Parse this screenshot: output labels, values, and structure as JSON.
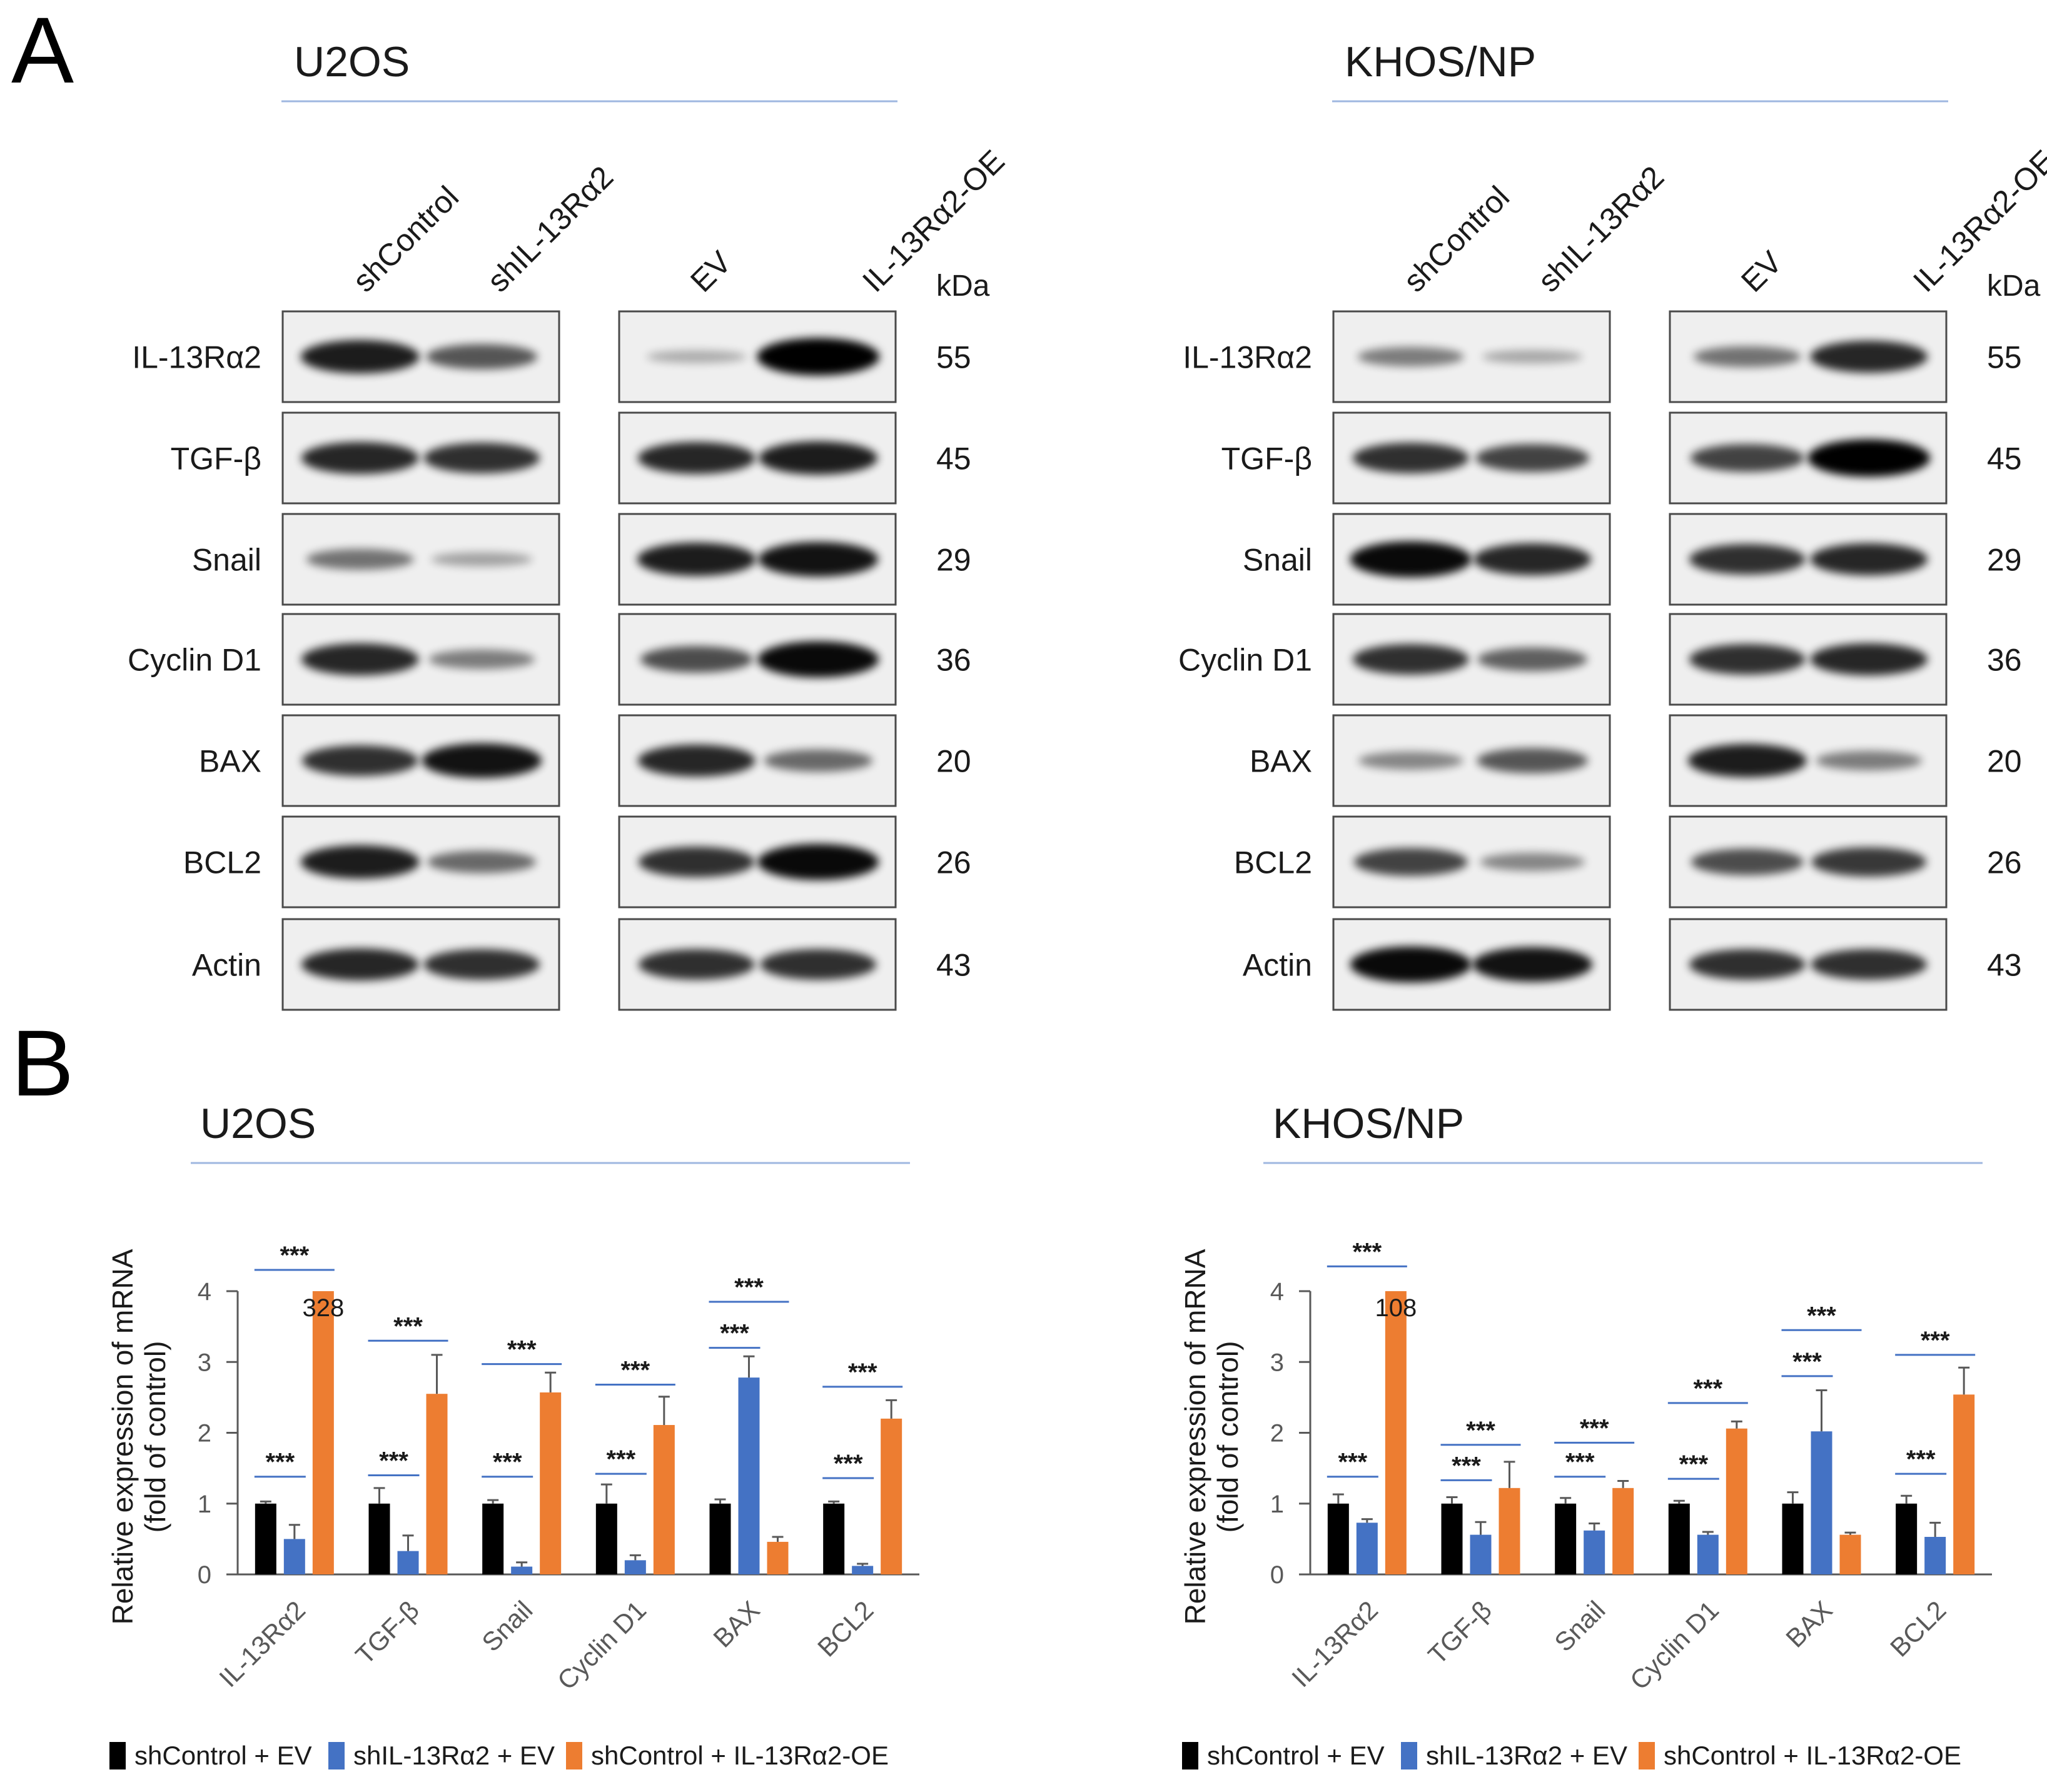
{
  "panels": {
    "a": "A",
    "b": "B"
  },
  "blots": {
    "lanes": [
      "shControl",
      "shIL-13Rα2",
      "EV",
      "IL-13Rα2-OE"
    ],
    "kda_label": "kDa",
    "proteins": [
      {
        "name": "IL-13Rα2",
        "kda": "55"
      },
      {
        "name": "TGF-β",
        "kda": "45"
      },
      {
        "name": "Snail",
        "kda": "29"
      },
      {
        "name": "Cyclin D1",
        "kda": "36"
      },
      {
        "name": "BAX",
        "kda": "20"
      },
      {
        "name": "BCL2",
        "kda": "26"
      },
      {
        "name": "Actin",
        "kda": "43"
      }
    ],
    "cells": [
      {
        "title": "U2OS",
        "bands": [
          [
            0.85,
            0.55,
            0.1,
            1.0
          ],
          [
            0.8,
            0.75,
            0.8,
            0.85
          ],
          [
            0.4,
            0.15,
            0.85,
            0.9
          ],
          [
            0.8,
            0.35,
            0.6,
            0.95
          ],
          [
            0.75,
            0.9,
            0.8,
            0.45
          ],
          [
            0.85,
            0.45,
            0.75,
            0.95
          ],
          [
            0.8,
            0.75,
            0.75,
            0.75
          ]
        ]
      },
      {
        "title": "KHOS/NP",
        "bands": [
          [
            0.35,
            0.12,
            0.4,
            0.8
          ],
          [
            0.75,
            0.65,
            0.65,
            1.0
          ],
          [
            0.95,
            0.8,
            0.75,
            0.8
          ],
          [
            0.75,
            0.5,
            0.75,
            0.8
          ],
          [
            0.3,
            0.55,
            0.85,
            0.35
          ],
          [
            0.65,
            0.3,
            0.6,
            0.7
          ],
          [
            0.95,
            0.9,
            0.75,
            0.75
          ]
        ]
      }
    ]
  },
  "chart_data": [
    {
      "type": "bar",
      "title": "U2OS",
      "ylabel": "Relative expression of mRNA (fold of control)",
      "ylabel_lines": [
        "Relative expression of mRNA",
        "(fold of control)"
      ],
      "ylim": [
        0,
        4
      ],
      "yticks": [
        "0",
        "1",
        "2",
        "3",
        "4"
      ],
      "categories": [
        "IL-13Rα2",
        "TGF-β",
        "Snail",
        "Cyclin D1",
        "BAX",
        "BCL2"
      ],
      "series": [
        {
          "name": "shControl + EV",
          "color": "#000000",
          "values": [
            1.0,
            1.0,
            1.0,
            1.0,
            1.0,
            1.0
          ],
          "errors": [
            0.03,
            0.22,
            0.05,
            0.27,
            0.06,
            0.03
          ]
        },
        {
          "name": "shIL-13Rα2 + EV",
          "color": "#4472c4",
          "values": [
            0.5,
            0.33,
            0.11,
            0.2,
            2.78,
            0.12
          ],
          "errors": [
            0.2,
            0.22,
            0.06,
            0.07,
            0.3,
            0.03
          ]
        },
        {
          "name": "shControl + IL-13Rα2-OE",
          "color": "#ed7d31",
          "values": [
            4.0,
            2.55,
            2.57,
            2.11,
            0.46,
            2.2
          ],
          "errors": [
            0.0,
            0.55,
            0.28,
            0.4,
            0.07,
            0.26
          ]
        }
      ],
      "bar_labels": [
        {
          "category": "IL-13Rα2",
          "series": "shControl + IL-13Rα2-OE",
          "text": "328"
        }
      ],
      "significance": [
        {
          "category": "IL-13Rα2",
          "label": "***",
          "pair": [
            "shControl + EV",
            "shIL-13Rα2 + EV"
          ],
          "y": 1.38
        },
        {
          "category": "IL-13Rα2",
          "label": "***",
          "pair": [
            "shControl + EV",
            "shControl + IL-13Rα2-OE"
          ],
          "y": 4.3
        },
        {
          "category": "TGF-β",
          "label": "***",
          "pair": [
            "shControl + EV",
            "shIL-13Rα2 + EV"
          ],
          "y": 1.4
        },
        {
          "category": "TGF-β",
          "label": "***",
          "pair": [
            "shControl + EV",
            "shControl + IL-13Rα2-OE"
          ],
          "y": 3.3
        },
        {
          "category": "Snail",
          "label": "***",
          "pair": [
            "shControl + EV",
            "shIL-13Rα2 + EV"
          ],
          "y": 1.38
        },
        {
          "category": "Snail",
          "label": "***",
          "pair": [
            "shControl + EV",
            "shControl + IL-13Rα2-OE"
          ],
          "y": 2.97
        },
        {
          "category": "Cyclin D1",
          "label": "***",
          "pair": [
            "shControl + EV",
            "shIL-13Rα2 + EV"
          ],
          "y": 1.42
        },
        {
          "category": "Cyclin D1",
          "label": "***",
          "pair": [
            "shControl + EV",
            "shControl + IL-13Rα2-OE"
          ],
          "y": 2.68
        },
        {
          "category": "BAX",
          "label": "***",
          "pair": [
            "shControl + EV",
            "shIL-13Rα2 + EV"
          ],
          "y": 3.2
        },
        {
          "category": "BAX",
          "label": "***",
          "pair": [
            "shControl + EV",
            "shControl + IL-13Rα2-OE"
          ],
          "y": 3.85
        },
        {
          "category": "BCL2",
          "label": "***",
          "pair": [
            "shControl + EV",
            "shIL-13Rα2 + EV"
          ],
          "y": 1.36
        },
        {
          "category": "BCL2",
          "label": "***",
          "pair": [
            "shControl + EV",
            "shControl + IL-13Rα2-OE"
          ],
          "y": 2.65
        }
      ],
      "legend_placement": "bottom"
    },
    {
      "type": "bar",
      "title": "KHOS/NP",
      "ylabel": "Relative expression of mRNA (fold of control)",
      "ylabel_lines": [
        "Relative expression of mRNA",
        "(fold of control)"
      ],
      "ylim": [
        0,
        4
      ],
      "yticks": [
        "0",
        "1",
        "2",
        "3",
        "4"
      ],
      "categories": [
        "IL-13Rα2",
        "TGF-β",
        "Snail",
        "Cyclin D1",
        "BAX",
        "BCL2"
      ],
      "series": [
        {
          "name": "shControl + EV",
          "color": "#000000",
          "values": [
            1.0,
            1.0,
            1.0,
            1.0,
            1.0,
            1.0
          ],
          "errors": [
            0.13,
            0.09,
            0.08,
            0.04,
            0.16,
            0.11
          ]
        },
        {
          "name": "shIL-13Rα2 + EV",
          "color": "#4472c4",
          "values": [
            0.73,
            0.56,
            0.62,
            0.56,
            2.02,
            0.53
          ],
          "errors": [
            0.05,
            0.18,
            0.1,
            0.04,
            0.58,
            0.2
          ]
        },
        {
          "name": "shControl + IL-13Rα2-OE",
          "color": "#ed7d31",
          "values": [
            4.0,
            1.22,
            1.22,
            2.06,
            0.56,
            2.54
          ],
          "errors": [
            0.0,
            0.37,
            0.1,
            0.1,
            0.03,
            0.38
          ]
        }
      ],
      "bar_labels": [
        {
          "category": "IL-13Rα2",
          "series": "shControl + IL-13Rα2-OE",
          "text": "108"
        }
      ],
      "significance": [
        {
          "category": "IL-13Rα2",
          "label": "***",
          "pair": [
            "shControl + EV",
            "shIL-13Rα2 + EV"
          ],
          "y": 1.38
        },
        {
          "category": "IL-13Rα2",
          "label": "***",
          "pair": [
            "shControl + EV",
            "shControl + IL-13Rα2-OE"
          ],
          "y": 4.35
        },
        {
          "category": "TGF-β",
          "label": "***",
          "pair": [
            "shControl + EV",
            "shIL-13Rα2 + EV"
          ],
          "y": 1.33
        },
        {
          "category": "TGF-β",
          "label": "***",
          "pair": [
            "shControl + EV",
            "shControl + IL-13Rα2-OE"
          ],
          "y": 1.83
        },
        {
          "category": "Snail",
          "label": "***",
          "pair": [
            "shControl + EV",
            "shIL-13Rα2 + EV"
          ],
          "y": 1.38
        },
        {
          "category": "Snail",
          "label": "***",
          "pair": [
            "shControl + EV",
            "shControl + IL-13Rα2-OE"
          ],
          "y": 1.86
        },
        {
          "category": "Cyclin D1",
          "label": "***",
          "pair": [
            "shControl + EV",
            "shIL-13Rα2 + EV"
          ],
          "y": 1.35
        },
        {
          "category": "Cyclin D1",
          "label": "***",
          "pair": [
            "shControl + EV",
            "shControl + IL-13Rα2-OE"
          ],
          "y": 2.42
        },
        {
          "category": "BAX",
          "label": "***",
          "pair": [
            "shControl + EV",
            "shIL-13Rα2 + EV"
          ],
          "y": 2.8
        },
        {
          "category": "BAX",
          "label": "***",
          "pair": [
            "shControl + EV",
            "shControl + IL-13Rα2-OE"
          ],
          "y": 3.45
        },
        {
          "category": "BCL2",
          "label": "***",
          "pair": [
            "shControl + EV",
            "shIL-13Rα2 + EV"
          ],
          "y": 1.42
        },
        {
          "category": "BCL2",
          "label": "***",
          "pair": [
            "shControl + EV",
            "shControl + IL-13Rα2-OE"
          ],
          "y": 3.1
        }
      ],
      "legend_placement": "bottom"
    }
  ]
}
